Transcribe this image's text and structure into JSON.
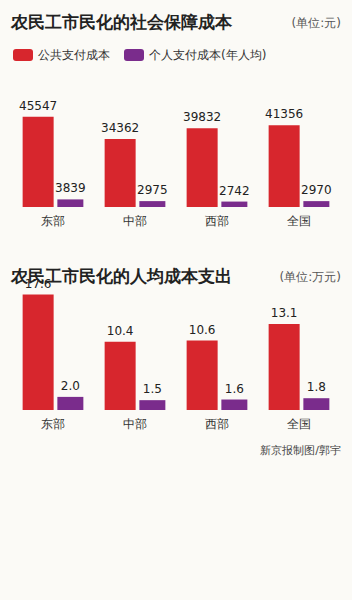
{
  "chart_data": [
    {
      "type": "bar",
      "title": "农民工市民化的社会保障成本",
      "subtitle": "(单位:元)",
      "categories": [
        "东部",
        "中部",
        "西部",
        "全国"
      ],
      "series": [
        {
          "name": "公共支付成本",
          "color": "#d7262d",
          "values": [
            45547,
            34362,
            39832,
            41356
          ]
        },
        {
          "name": "个人支付成本(年人均)",
          "color": "#7a2c8c",
          "values": [
            3839,
            2975,
            2742,
            2970
          ]
        }
      ],
      "ylim": [
        0,
        48000
      ],
      "grid": false,
      "legend": "top-left",
      "data_labels": true,
      "tick_labels": "x"
    },
    {
      "type": "bar",
      "title": "农民工市民化的人均成本支出",
      "subtitle": "(单位:万元)",
      "categories": [
        "东部",
        "中部",
        "西部",
        "全国"
      ],
      "series": [
        {
          "color": "#d7262d",
          "values": [
            17.6,
            10.4,
            10.6,
            13.1
          ]
        },
        {
          "color": "#7a2c8c",
          "values": [
            2.0,
            1.5,
            1.6,
            1.8
          ],
          "value_labels": [
            "2.0",
            "1.5",
            "1.6",
            "1.8"
          ]
        }
      ],
      "ylim": [
        0,
        18
      ],
      "grid": false,
      "data_labels": true,
      "tick_labels": "x"
    }
  ],
  "source": "新京报制图/郭宇"
}
